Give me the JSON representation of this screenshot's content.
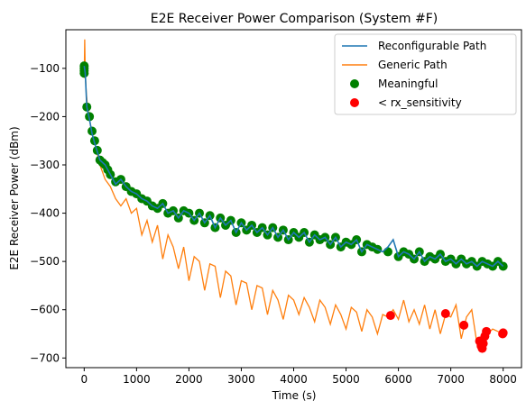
{
  "chart_data": {
    "type": "line",
    "title": "E2E Receiver Power Comparison (System #F)",
    "xlabel": "Time (s)",
    "ylabel": "E2E Receiver Power (dBm)",
    "xlim": [
      -350,
      8350
    ],
    "ylim": [
      -720,
      -20
    ],
    "xticks": [
      0,
      1000,
      2000,
      3000,
      4000,
      5000,
      6000,
      7000,
      8000
    ],
    "yticks": [
      -100,
      -200,
      -300,
      -400,
      -500,
      -600,
      -700
    ],
    "grid": false,
    "legend_placement": "top-right",
    "series": [
      {
        "name": "Reconfigurable Path",
        "color": "#1f77b4",
        "style": "line",
        "x": [
          0,
          20,
          50,
          100,
          150,
          200,
          300,
          400,
          500,
          600,
          700,
          800,
          900,
          1000,
          1100,
          1200,
          1300,
          1400,
          1500,
          1600,
          1700,
          1800,
          1900,
          2000,
          2100,
          2200,
          2300,
          2400,
          2500,
          2600,
          2700,
          2800,
          2900,
          3000,
          3100,
          3200,
          3300,
          3400,
          3500,
          3600,
          3700,
          3800,
          3900,
          4000,
          4100,
          4200,
          4300,
          4400,
          4500,
          4600,
          4700,
          4800,
          4900,
          5000,
          5100,
          5200,
          5300,
          5400,
          5500,
          5600,
          5700,
          5800,
          5900,
          6000,
          6100,
          6200,
          6300,
          6400,
          6500,
          6600,
          6700,
          6800,
          6900,
          7000,
          7100,
          7200,
          7300,
          7400,
          7500,
          7600,
          7700,
          7800,
          7900,
          8000
        ],
        "y": [
          -95,
          -110,
          -180,
          -205,
          -235,
          -255,
          -290,
          -300,
          -320,
          -340,
          -330,
          -345,
          -355,
          -360,
          -370,
          -375,
          -385,
          -390,
          -380,
          -400,
          -395,
          -410,
          -395,
          -400,
          -415,
          -400,
          -420,
          -405,
          -430,
          -410,
          -425,
          -415,
          -440,
          -420,
          -435,
          -425,
          -440,
          -430,
          -445,
          -430,
          -450,
          -435,
          -455,
          -440,
          -450,
          -440,
          -460,
          -445,
          -455,
          -450,
          -465,
          -450,
          -470,
          -460,
          -465,
          -455,
          -480,
          -465,
          -470,
          -475,
          -480,
          -470,
          -455,
          -490,
          -480,
          -485,
          -495,
          -480,
          -500,
          -490,
          -495,
          -485,
          -500,
          -495,
          -505,
          -495,
          -505,
          -500,
          -510,
          -500,
          -505,
          -510,
          -500,
          -510
        ]
      },
      {
        "name": "Generic Path",
        "color": "#ff7f0e",
        "style": "line",
        "x": [
          0,
          10,
          20,
          40,
          60,
          100,
          150,
          200,
          300,
          400,
          500,
          600,
          700,
          800,
          900,
          1000,
          1100,
          1200,
          1300,
          1400,
          1500,
          1600,
          1700,
          1800,
          1900,
          2000,
          2100,
          2200,
          2300,
          2400,
          2500,
          2600,
          2700,
          2800,
          2900,
          3000,
          3100,
          3200,
          3300,
          3400,
          3500,
          3600,
          3700,
          3800,
          3900,
          4000,
          4100,
          4200,
          4300,
          4400,
          4500,
          4600,
          4700,
          4800,
          4900,
          5000,
          5100,
          5200,
          5300,
          5400,
          5500,
          5600,
          5700,
          5800,
          5900,
          6000,
          6100,
          6200,
          6300,
          6400,
          6500,
          6600,
          6700,
          6800,
          6900,
          7000,
          7100,
          7200,
          7300,
          7400,
          7500,
          7550,
          7600,
          7650,
          7700,
          7800,
          7900,
          8000
        ],
        "y": [
          -120,
          -40,
          -110,
          -150,
          -175,
          -205,
          -235,
          -255,
          -300,
          -330,
          -345,
          -370,
          -385,
          -370,
          -400,
          -390,
          -445,
          -415,
          -460,
          -425,
          -495,
          -445,
          -470,
          -515,
          -470,
          -540,
          -490,
          -500,
          -560,
          -505,
          -510,
          -575,
          -520,
          -530,
          -590,
          -540,
          -545,
          -600,
          -550,
          -555,
          -610,
          -560,
          -580,
          -620,
          -570,
          -580,
          -610,
          -575,
          -595,
          -625,
          -580,
          -595,
          -630,
          -590,
          -610,
          -640,
          -595,
          -605,
          -645,
          -600,
          -615,
          -650,
          -610,
          -615,
          -600,
          -620,
          -580,
          -625,
          -600,
          -630,
          -590,
          -640,
          -600,
          -650,
          -610,
          -615,
          -590,
          -660,
          -615,
          -600,
          -670,
          -680,
          -660,
          -640,
          -650,
          -640,
          -645,
          -650
        ]
      },
      {
        "name": "Meaningful",
        "color": "#008000",
        "style": "scatter",
        "x": [
          0,
          0,
          0,
          0,
          50,
          100,
          150,
          200,
          250,
          300,
          350,
          400,
          450,
          500,
          600,
          700,
          800,
          900,
          1000,
          1100,
          1200,
          1300,
          1400,
          1500,
          1600,
          1700,
          1800,
          1900,
          2000,
          2100,
          2200,
          2300,
          2400,
          2500,
          2600,
          2700,
          2800,
          2900,
          3000,
          3100,
          3200,
          3300,
          3400,
          3500,
          3600,
          3700,
          3800,
          3900,
          4000,
          4100,
          4200,
          4300,
          4400,
          4500,
          4600,
          4700,
          4800,
          4900,
          5000,
          5100,
          5200,
          5300,
          5400,
          5500,
          5600,
          5800,
          6000,
          6100,
          6200,
          6300,
          6400,
          6500,
          6600,
          6700,
          6800,
          6900,
          7000,
          7100,
          7200,
          7300,
          7400,
          7500,
          7600,
          7700,
          7800,
          7900,
          8000
        ],
        "y": [
          -95,
          -100,
          -105,
          -110,
          -180,
          -200,
          -230,
          -250,
          -270,
          -290,
          -295,
          -300,
          -310,
          -320,
          -335,
          -330,
          -345,
          -355,
          -360,
          -370,
          -375,
          -385,
          -390,
          -380,
          -400,
          -395,
          -410,
          -395,
          -400,
          -415,
          -400,
          -420,
          -405,
          -430,
          -410,
          -425,
          -415,
          -440,
          -420,
          -435,
          -425,
          -440,
          -430,
          -445,
          -430,
          -450,
          -435,
          -455,
          -440,
          -450,
          -440,
          -460,
          -445,
          -455,
          -450,
          -465,
          -450,
          -470,
          -460,
          -465,
          -455,
          -480,
          -465,
          -470,
          -475,
          -480,
          -490,
          -480,
          -485,
          -495,
          -480,
          -500,
          -490,
          -495,
          -485,
          -500,
          -495,
          -505,
          -495,
          -505,
          -500,
          -510,
          -500,
          -505,
          -510,
          -500,
          -510
        ]
      },
      {
        "name": "< rx_sensitivity",
        "color": "#ff0000",
        "style": "scatter",
        "x": [
          5850,
          6900,
          7250,
          7550,
          7580,
          7600,
          7620,
          7650,
          7680,
          7990,
          8000
        ],
        "y": [
          -612,
          -608,
          -632,
          -665,
          -675,
          -680,
          -670,
          -655,
          -645,
          -650,
          -648
        ]
      }
    ]
  }
}
